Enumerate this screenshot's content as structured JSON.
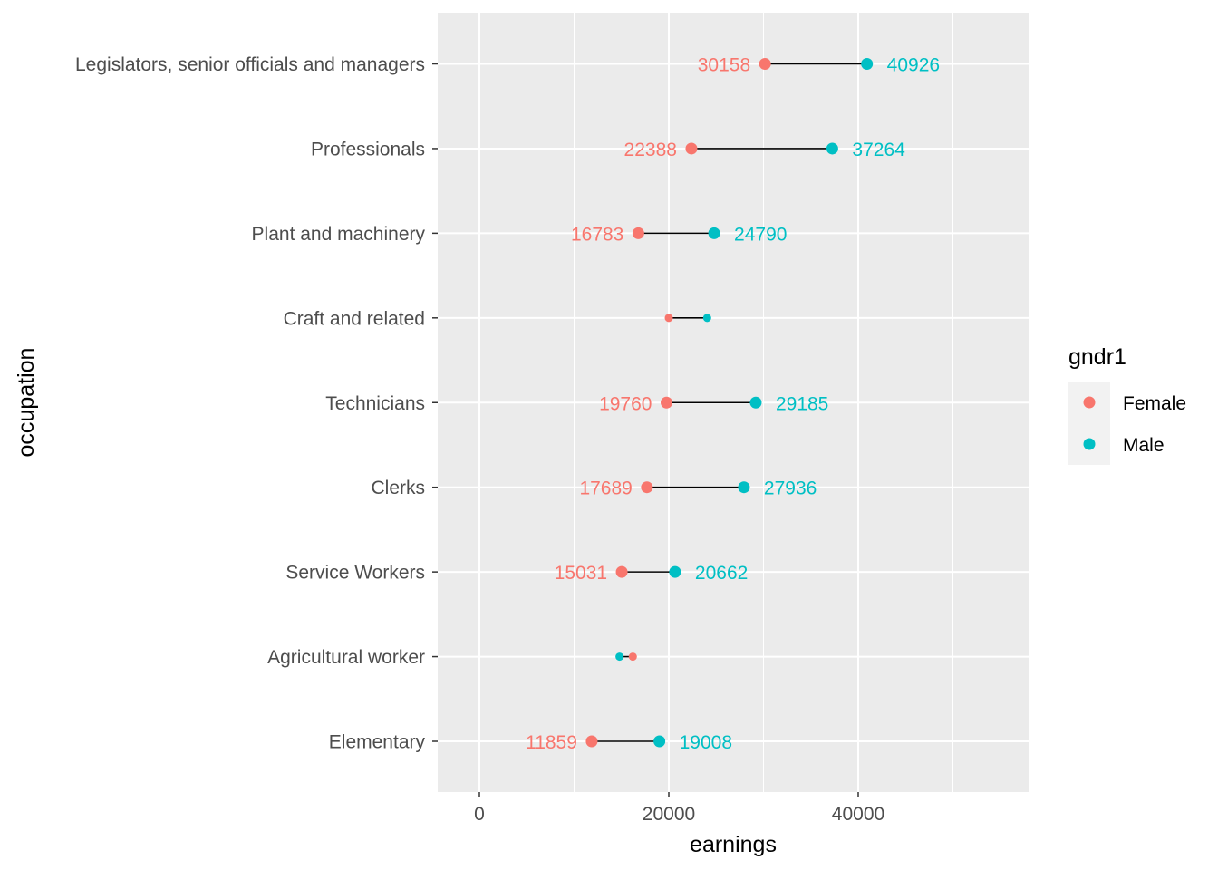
{
  "chart_data": {
    "type": "dumbbell",
    "xlabel": "earnings",
    "ylabel": "occupation",
    "xlim": [
      -4200,
      57000
    ],
    "x_ticks": [
      0,
      20000,
      40000
    ],
    "x_tick_labels": [
      "0",
      "20000",
      "40000"
    ],
    "grid": true,
    "legend": {
      "title": "gndr1",
      "position": "right",
      "entries": [
        {
          "label": "Female",
          "color": "#F8766D"
        },
        {
          "label": "Male",
          "color": "#00BFC4"
        }
      ]
    },
    "categories": [
      "Legislators, senior officials and managers",
      "Professionals",
      "Plant and machinery",
      "Craft and related",
      "Technicians",
      "Clerks",
      "Service Workers",
      "Agricultural worker",
      "Elementary"
    ],
    "series": [
      {
        "name": "Female",
        "color": "#F8766D",
        "values": [
          30158,
          22388,
          16783,
          20000,
          19760,
          17689,
          15031,
          16200,
          11859
        ]
      },
      {
        "name": "Male",
        "color": "#00BFC4",
        "values": [
          40926,
          37264,
          24790,
          24050,
          29185,
          27936,
          20662,
          14800,
          19008
        ]
      }
    ],
    "value_labels": {
      "Female": [
        "30158",
        "22388",
        "16783",
        "",
        "19760",
        "17689",
        "15031",
        "",
        "11859"
      ],
      "Male": [
        "40926",
        "37264",
        "24790",
        "",
        "29185",
        "27936",
        "20662",
        "",
        "19008"
      ]
    },
    "large_points": [
      true,
      true,
      true,
      false,
      true,
      true,
      true,
      false,
      true
    ]
  }
}
